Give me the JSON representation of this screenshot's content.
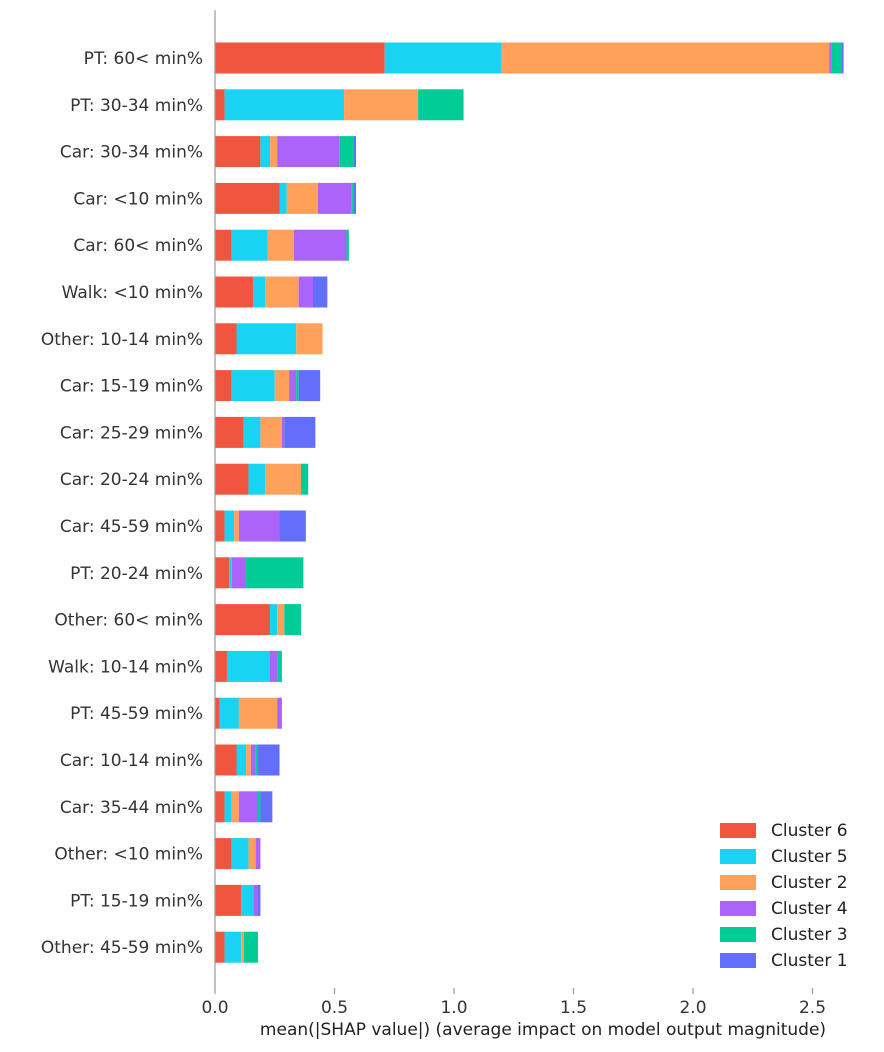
{
  "chart_data": {
    "type": "bar",
    "stacked": true,
    "orientation": "horizontal",
    "title": "",
    "xlabel": "mean(|SHAP value|) (average impact on model output magnitude)",
    "ylabel": "",
    "xlim": [
      0,
      2.78
    ],
    "xticks": [
      0.0,
      0.5,
      1.0,
      1.5,
      2.0,
      2.5
    ],
    "xtick_labels": [
      "0.0",
      "0.5",
      "1.0",
      "1.5",
      "2.0",
      "2.5"
    ],
    "grid": false,
    "legend_position": "bottom-right",
    "categories": [
      "PT: 60< min%",
      "PT: 30-34 min%",
      "Car: 30-34 min%",
      "Car: <10 min%",
      "Car: 60< min%",
      "Walk: <10 min%",
      "Other: 10-14 min%",
      "Car: 15-19 min%",
      "Car: 25-29 min%",
      "Car: 20-24 min%",
      "Car: 45-59 min%",
      "PT: 20-24 min%",
      "Other: 60< min%",
      "Walk: 10-14 min%",
      "PT: 45-59 min%",
      "Car: 10-14 min%",
      "Car: 35-44 min%",
      "Other: <10 min%",
      "PT: 15-19 min%",
      "Other: 45-59 min%"
    ],
    "stack_order": [
      "Cluster 6",
      "Cluster 5",
      "Cluster 2",
      "Cluster 4",
      "Cluster 3",
      "Cluster 1"
    ],
    "series": [
      {
        "name": "Cluster 6",
        "color": "#f0553f",
        "values": [
          0.71,
          0.04,
          0.19,
          0.27,
          0.07,
          0.16,
          0.09,
          0.07,
          0.12,
          0.14,
          0.04,
          0.06,
          0.23,
          0.05,
          0.02,
          0.09,
          0.04,
          0.07,
          0.11,
          0.04
        ]
      },
      {
        "name": "Cluster 5",
        "color": "#19d3f3",
        "values": [
          0.49,
          0.5,
          0.04,
          0.03,
          0.15,
          0.05,
          0.25,
          0.18,
          0.07,
          0.07,
          0.04,
          0.01,
          0.03,
          0.18,
          0.08,
          0.04,
          0.03,
          0.07,
          0.05,
          0.07
        ]
      },
      {
        "name": "Cluster 2",
        "color": "#ffa15a",
        "values": [
          1.37,
          0.31,
          0.03,
          0.13,
          0.11,
          0.14,
          0.11,
          0.06,
          0.09,
          0.15,
          0.02,
          0.0,
          0.03,
          0.0,
          0.16,
          0.02,
          0.03,
          0.03,
          0.0,
          0.01
        ]
      },
      {
        "name": "Cluster 4",
        "color": "#ab63fa",
        "values": [
          0.01,
          0.0,
          0.26,
          0.14,
          0.22,
          0.06,
          0.0,
          0.03,
          0.01,
          0.0,
          0.17,
          0.06,
          0.0,
          0.03,
          0.02,
          0.02,
          0.08,
          0.02,
          0.02,
          0.0
        ]
      },
      {
        "name": "Cluster 3",
        "color": "#00cc96",
        "values": [
          0.04,
          0.19,
          0.06,
          0.01,
          0.01,
          0.0,
          0.0,
          0.01,
          0.0,
          0.03,
          0.0,
          0.24,
          0.07,
          0.02,
          0.0,
          0.01,
          0.01,
          0.0,
          0.0,
          0.06
        ]
      },
      {
        "name": "Cluster 1",
        "color": "#636efa",
        "values": [
          0.01,
          0.0,
          0.01,
          0.01,
          0.0,
          0.06,
          0.0,
          0.09,
          0.13,
          0.0,
          0.11,
          0.0,
          0.0,
          0.0,
          0.0,
          0.09,
          0.05,
          0.0,
          0.01,
          0.0
        ]
      }
    ]
  }
}
